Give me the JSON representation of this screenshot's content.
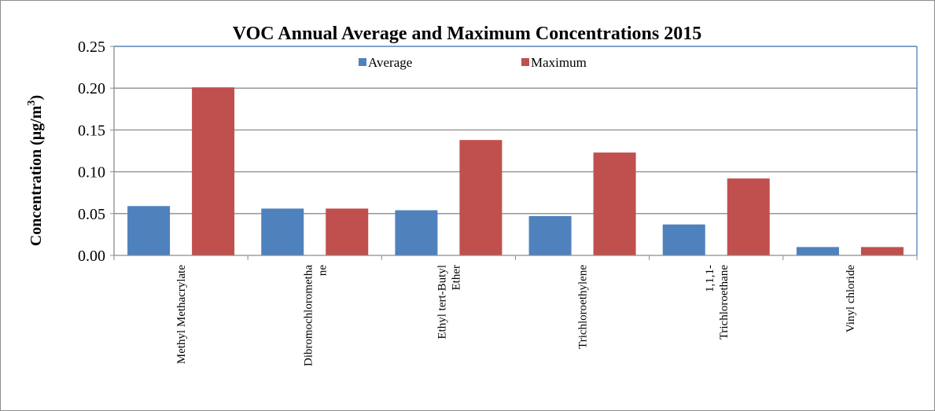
{
  "chart_data": {
    "type": "bar",
    "title": "VOC Annual Average and Maximum Concentrations 2015",
    "ylabel": "Concentration (µg/m³)",
    "xlabel": "",
    "ylim": [
      0,
      0.25
    ],
    "yticks": [
      "0.00",
      "0.05",
      "0.10",
      "0.15",
      "0.20",
      "0.25"
    ],
    "categories": [
      [
        "Methyl Methacrylate"
      ],
      [
        "Dibromochlorometha",
        "ne"
      ],
      [
        "Ethyl tert-Butyl",
        "Ether"
      ],
      [
        "Trichloroethylene"
      ],
      [
        "1,1,1-",
        "Trichloroethane"
      ],
      [
        "Vinyl chloride"
      ]
    ],
    "series": [
      {
        "name": "Average",
        "color": "#4f81bd",
        "values": [
          0.059,
          0.056,
          0.054,
          0.047,
          0.037,
          0.01
        ]
      },
      {
        "name": "Maximum",
        "color": "#c0504d",
        "values": [
          0.201,
          0.056,
          0.138,
          0.123,
          0.092,
          0.01
        ]
      }
    ],
    "grid": true,
    "legend": "top-center"
  }
}
